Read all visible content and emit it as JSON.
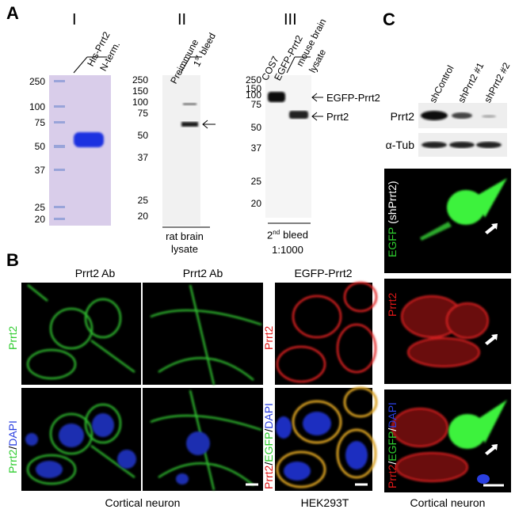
{
  "panel_a": {
    "letter": "A",
    "gel_1": {
      "numeral": "I",
      "header": [
        "His-Prrt2",
        "N-term."
      ],
      "ladder": [
        250,
        100,
        75,
        50,
        37,
        25,
        20
      ]
    },
    "gel_2": {
      "numeral": "II",
      "lanes": {
        "preimmune": "Preimmune",
        "bleed": {
          "number": "1",
          "suffix": "st",
          "word": "bleed"
        }
      },
      "ladder": [
        250,
        150,
        100,
        75,
        50,
        37,
        25,
        20
      ],
      "footer": [
        "rat brain",
        "lysate"
      ]
    },
    "gel_3": {
      "numeral": "III",
      "lanes": {
        "cos7": [
          "COS7",
          "EGFP-Prrt2"
        ],
        "brain": [
          "mouse brain",
          "lysate"
        ]
      },
      "ladder": [
        250,
        150,
        100,
        75,
        50,
        37,
        25,
        20
      ],
      "bands": [
        "EGFP-Prrt2",
        "Prrt2"
      ],
      "footer": {
        "number": "2",
        "suffix": "nd",
        "word": "bleed",
        "dilution": "1:1000"
      }
    }
  },
  "panel_b": {
    "letter": "B",
    "columns": [
      "Prrt2 Ab",
      "Prrt2 Ab",
      "EGFP-Prrt2"
    ],
    "row_labels_neuron": [
      [
        "Prrt2"
      ],
      [
        "Prrt2",
        "/",
        "DAPI"
      ]
    ],
    "row_labels_hek": [
      [
        "Prrt2"
      ],
      [
        "Prrt2",
        "/",
        "EGFP",
        "/",
        "DAPI"
      ]
    ],
    "footers": [
      "Cortical neuron",
      "HEK293T"
    ]
  },
  "panel_c": {
    "letter": "C",
    "lanes": [
      "shControl",
      "shPrrt2 #1",
      "shPrrt2 #2"
    ],
    "blots": [
      "Prrt2",
      "α-Tub"
    ],
    "image_labels": [
      [
        "EGFP",
        "(shPrrt2)"
      ],
      [
        "Prrt2"
      ],
      [
        "Prrt2",
        "/",
        "EGFP",
        "/",
        "DAPI"
      ]
    ],
    "footer": "Cortical neuron"
  }
}
